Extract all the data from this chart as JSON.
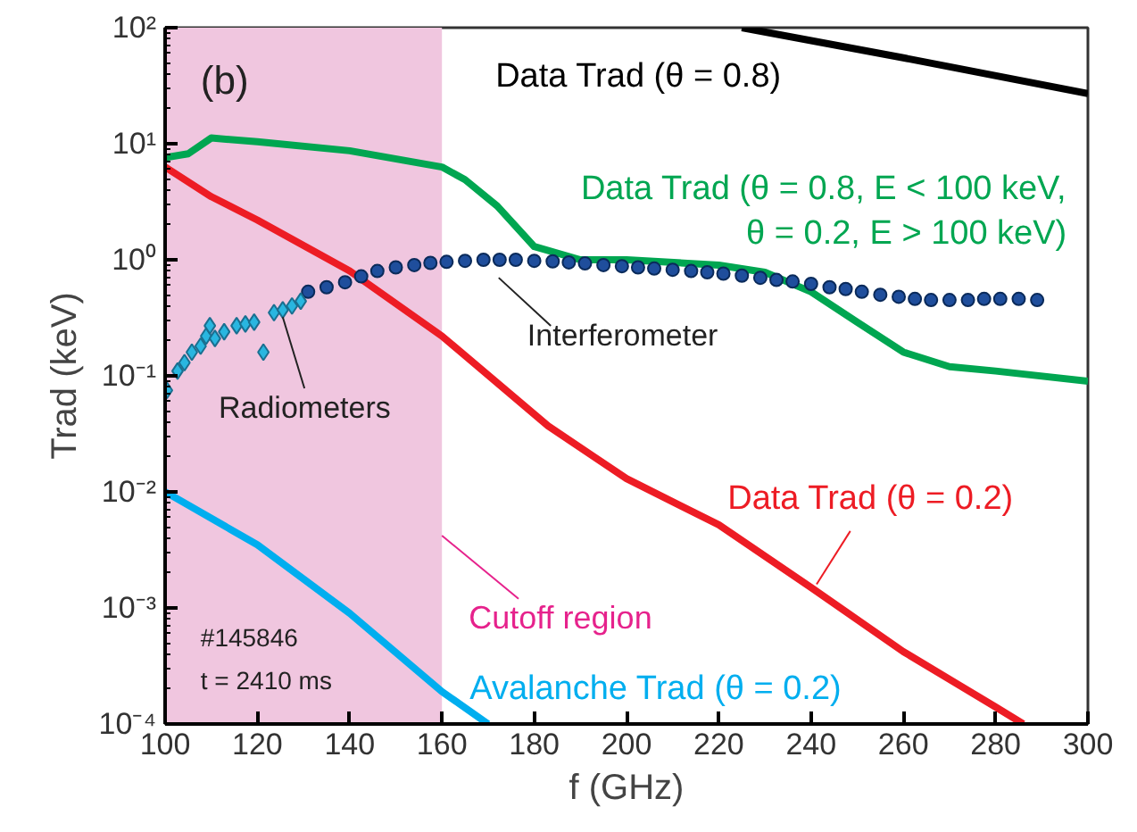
{
  "chart_data": {
    "type": "line",
    "xlabel": "f (GHz)",
    "ylabel": "Trad (keV)",
    "log": "y",
    "xlim": [
      100,
      300
    ],
    "xticks": [
      100,
      120,
      140,
      160,
      180,
      200,
      220,
      240,
      260,
      280,
      300
    ],
    "ylim": [
      0.0001,
      100
    ],
    "yticks": [
      {
        "value": 0.0001,
        "label": "10⁻⁴"
      },
      {
        "value": 0.001,
        "label": "10⁻³"
      },
      {
        "value": 0.01,
        "label": "10⁻²"
      },
      {
        "value": 0.1,
        "label": "10⁻¹"
      },
      {
        "value": 1,
        "label": "10⁰"
      },
      {
        "value": 10,
        "label": "10¹"
      },
      {
        "value": 100,
        "label": "10²"
      }
    ],
    "grid": false,
    "bands": [
      {
        "axis": "x",
        "from": 100,
        "to": 160,
        "label": "Cutoff region",
        "color": "#f0c6df"
      }
    ],
    "annotations": [
      "(b)",
      "#145846",
      "t = 2410 ms"
    ],
    "series": [
      {
        "name": "Data Trad (θ = 0.8)",
        "color": "#000000",
        "x": [
          225,
          260,
          300
        ],
        "values": [
          100,
          55,
          27
        ]
      },
      {
        "name": "Data Trad (θ = 0.8, E < 100 keV,\nθ = 0.2, E > 100 keV)",
        "color": "#00a651",
        "x": [
          100,
          105,
          110,
          120,
          140,
          160,
          165,
          172,
          180,
          190,
          200,
          220,
          230,
          240,
          250,
          260,
          270,
          280,
          300
        ],
        "values": [
          7.6,
          8.2,
          11.2,
          10.4,
          8.7,
          6.3,
          4.9,
          2.9,
          1.3,
          1.0,
          1.0,
          0.9,
          0.78,
          0.53,
          0.29,
          0.16,
          0.12,
          0.11,
          0.09
        ]
      },
      {
        "name": "Data Trad (θ = 0.2)",
        "color": "#ed1c24",
        "x": [
          100,
          110,
          120,
          140,
          160,
          183,
          200,
          220,
          240,
          260,
          280,
          286
        ],
        "values": [
          6.3,
          3.5,
          2.2,
          0.8,
          0.22,
          0.037,
          0.013,
          0.0052,
          0.0015,
          0.00042,
          0.00014,
          0.0001
        ]
      },
      {
        "name": "Avalanche Trad (θ = 0.2)",
        "color": "#00aeef",
        "x": [
          100,
          120,
          140,
          160,
          170
        ],
        "values": [
          0.01,
          0.0035,
          0.0009,
          0.00019,
          0.0001
        ]
      },
      {
        "name": "Interferometer",
        "type": "scatter",
        "marker": "circle",
        "color": "#1f4e9c",
        "x": [
          131,
          135,
          139,
          142.5,
          146,
          150,
          154,
          157.5,
          161,
          165,
          169,
          172.5,
          176,
          180,
          184,
          187.5,
          191,
          195,
          199,
          202.5,
          206,
          210,
          214,
          217.5,
          221,
          225,
          229,
          232.5,
          236,
          240,
          244,
          247.5,
          251,
          255,
          259,
          262.5,
          266,
          270,
          274,
          277.5,
          281,
          285,
          289
        ],
        "values": [
          0.53,
          0.58,
          0.64,
          0.72,
          0.8,
          0.86,
          0.9,
          0.94,
          0.96,
          0.98,
          1.0,
          1.0,
          1.0,
          0.98,
          0.97,
          0.95,
          0.93,
          0.9,
          0.88,
          0.86,
          0.84,
          0.82,
          0.8,
          0.78,
          0.76,
          0.73,
          0.7,
          0.67,
          0.65,
          0.62,
          0.58,
          0.56,
          0.53,
          0.5,
          0.48,
          0.46,
          0.45,
          0.45,
          0.45,
          0.46,
          0.46,
          0.46,
          0.45
        ]
      },
      {
        "name": "Radiometers",
        "type": "scatter",
        "marker": "diamond",
        "color": "#29b6e0",
        "x": [
          100.4,
          101.5,
          102.7,
          104.2,
          105.8,
          107.7,
          108.9,
          109.7,
          110.8,
          112.8,
          115.5,
          117.4,
          119.3,
          121.3,
          123.6,
          125.5,
          127.5,
          129.4
        ],
        "values": [
          0.075,
          null,
          0.11,
          0.13,
          0.16,
          0.18,
          0.22,
          0.27,
          0.21,
          0.24,
          0.27,
          0.28,
          0.29,
          0.16,
          0.35,
          0.37,
          0.4,
          0.44
        ]
      }
    ]
  }
}
